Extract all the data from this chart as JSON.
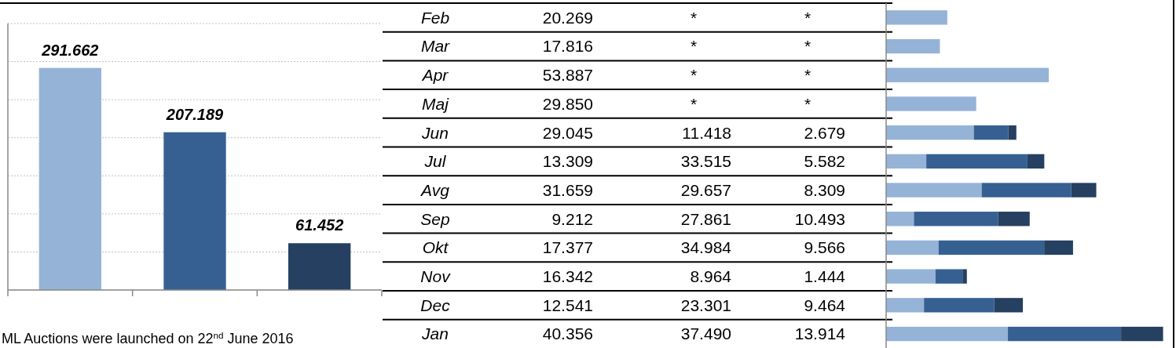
{
  "chart_data": [
    {
      "type": "bar",
      "categories": [
        null,
        null,
        null
      ],
      "values": [
        291.662,
        207.189,
        61.452
      ],
      "colors": [
        "#95b3d7",
        "#366092",
        "#254061"
      ],
      "ylim": [
        0,
        350
      ],
      "yticks": [
        {
          "value": 0,
          "label": null
        },
        {
          "value": 50,
          "label": null
        },
        {
          "value": 100,
          "label": null
        },
        {
          "value": 150,
          "label": null
        },
        {
          "value": 200,
          "label": null
        },
        {
          "value": 250,
          "label": null
        },
        {
          "value": 300,
          "label": null
        },
        {
          "value": 350,
          "label": null
        }
      ],
      "grid": "y",
      "data_labels": true,
      "tick_labels": false,
      "annotations": [
        "ML Auctions were launched on 22$^{nd}$ June 2016"
      ]
    },
    {
      "type": "bar",
      "orientation": "horizontal",
      "stacked": true,
      "categories": [
        "Feb",
        "Mar",
        "Apr",
        "Maj",
        "Jun",
        "Jul",
        "Avg",
        "Sep",
        "Okt",
        "Nov",
        "Dec",
        "Jan"
      ],
      "xlim": [
        0,
        95
      ],
      "tick_labels": "y",
      "series": [
        {
          "color": "#95b3d7",
          "values": [
            20.269,
            17.816,
            53.887,
            29.85,
            29.045,
            13.309,
            31.659,
            9.212,
            17.377,
            16.342,
            12.541,
            40.356
          ],
          "value_labels": [
            "20.269",
            "17.816",
            "53.887",
            "29.850",
            "29.045",
            "13.309",
            "31.659",
            "9.212",
            "17.377",
            "16.342",
            "12.541",
            "40.356"
          ]
        },
        {
          "color": "#366092",
          "values": [
            null,
            null,
            null,
            null,
            11.418,
            33.515,
            29.657,
            27.861,
            34.984,
            8.964,
            23.301,
            37.49
          ],
          "value_labels": [
            "*",
            "*",
            "*",
            "*",
            "11.418",
            "33.515",
            "29.657",
            "27.861",
            "34.984",
            "8.964",
            "23.301",
            "37.490"
          ]
        },
        {
          "color": "#254061",
          "values": [
            null,
            null,
            null,
            null,
            2.679,
            5.582,
            8.309,
            10.493,
            9.566,
            1.444,
            9.464,
            13.914
          ],
          "value_labels": [
            "*",
            "*",
            "*",
            "*",
            "2.679",
            "5.582",
            "8.309",
            "10.493",
            "9.566",
            "1.444",
            "9.464",
            "13.914"
          ]
        }
      ]
    }
  ]
}
